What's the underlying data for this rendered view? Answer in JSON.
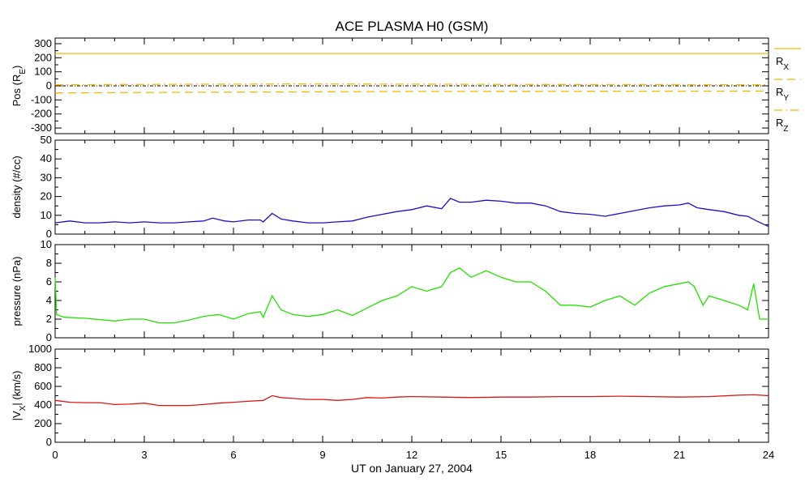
{
  "figure": {
    "title": "ACE PLASMA H0 (GSM)",
    "xlabel": "UT on January 27, 2004"
  },
  "chart_data": [
    {
      "type": "line",
      "panel": "position",
      "ylabel_main": "Pos (R",
      "ylabel_sub": "E",
      "ylabel_end": ")",
      "ylim": [
        -340,
        340
      ],
      "yticks": [
        "300",
        "200",
        "100",
        "0",
        "-100",
        "-200",
        "-300"
      ],
      "ytick_values": [
        300,
        200,
        100,
        0,
        -100,
        -200,
        -300
      ],
      "xlim": [
        0,
        24
      ],
      "zero_line": true,
      "series": [
        {
          "name": "R",
          "sub": "X",
          "color": "#f5b800",
          "style": "solid",
          "x": [
            0,
            24
          ],
          "y": [
            230,
            230
          ]
        },
        {
          "name": "R",
          "sub": "Y",
          "color": "#f5b800",
          "style": "dashed",
          "x": [
            0,
            4,
            8,
            12,
            16,
            20,
            24
          ],
          "y": [
            -50,
            -46,
            -43,
            -40,
            -39,
            -38,
            -37
          ]
        },
        {
          "name": "R",
          "sub": "Z",
          "color": "#f5b800",
          "style": "dashdot",
          "x": [
            0,
            4,
            8,
            12,
            16,
            20,
            24
          ],
          "y": [
            8,
            11,
            13,
            12,
            10,
            9,
            8
          ]
        }
      ]
    },
    {
      "type": "line",
      "panel": "density",
      "ylabel": "density (#/cc)",
      "ylim": [
        0,
        50
      ],
      "yticks": [
        "50",
        "40",
        "30",
        "20",
        "10",
        "0"
      ],
      "ytick_values": [
        50,
        40,
        30,
        20,
        10,
        0
      ],
      "xlim": [
        0,
        24
      ],
      "series": [
        {
          "name": "density",
          "color": "#1a10c8",
          "x": [
            0,
            0.5,
            1,
            1.5,
            2,
            2.5,
            3,
            3.5,
            4,
            4.5,
            5,
            5.3,
            5.7,
            6,
            6.5,
            6.9,
            7.0,
            7.3,
            7.6,
            8,
            8.5,
            9,
            9.5,
            10,
            10.5,
            11,
            11.5,
            12,
            12.5,
            13,
            13.3,
            13.6,
            14,
            14.5,
            15,
            15.5,
            16,
            16.5,
            17,
            17.5,
            18,
            18.5,
            19,
            19.5,
            20,
            20.5,
            21,
            21.3,
            21.6,
            22,
            22.5,
            23,
            23.3,
            23.6,
            24
          ],
          "y": [
            6,
            7,
            6,
            6,
            6.5,
            6,
            6.5,
            6,
            6,
            6.5,
            7,
            8.5,
            7,
            6.5,
            7.5,
            7.5,
            6.5,
            11,
            8,
            7,
            6,
            6,
            6.5,
            7,
            9,
            10.5,
            12,
            13,
            15,
            13.5,
            19,
            17,
            17,
            18,
            17.5,
            16.5,
            16.5,
            15,
            12,
            11,
            10.5,
            9.5,
            11,
            12.5,
            14,
            15,
            15.5,
            16.5,
            14,
            13,
            12,
            10,
            9.5,
            7,
            4
          ]
        }
      ]
    },
    {
      "type": "line",
      "panel": "pressure",
      "ylabel": "pressure (nPa)",
      "ylim": [
        0,
        10
      ],
      "yticks": [
        "10",
        "8",
        "6",
        "4",
        "2",
        "0"
      ],
      "ytick_values": [
        10,
        8,
        6,
        4,
        2,
        0
      ],
      "xlim": [
        0,
        24
      ],
      "series": [
        {
          "name": "pressure",
          "color": "#22e000",
          "x": [
            0,
            0.05,
            0.3,
            1,
            2,
            2.5,
            3,
            3.5,
            4,
            4.5,
            5,
            5.5,
            6,
            6.5,
            6.9,
            7.0,
            7.3,
            7.6,
            8,
            8.5,
            9,
            9.5,
            10,
            10.5,
            11,
            11.5,
            12,
            12.5,
            13,
            13.3,
            13.6,
            14,
            14.5,
            15,
            15.5,
            16,
            16.5,
            17,
            17.5,
            18,
            18.5,
            19,
            19.5,
            20,
            20.5,
            21,
            21.3,
            21.5,
            21.8,
            22,
            22.5,
            23,
            23.3,
            23.5,
            23.7,
            24
          ],
          "y": [
            6.5,
            2.5,
            2.2,
            2.1,
            1.8,
            2.0,
            2.0,
            1.6,
            1.6,
            1.9,
            2.3,
            2.5,
            2.0,
            2.6,
            2.8,
            2.2,
            4.5,
            3.0,
            2.5,
            2.3,
            2.5,
            3.0,
            2.4,
            3.2,
            4.0,
            4.5,
            5.5,
            5.0,
            5.5,
            7.0,
            7.5,
            6.5,
            7.2,
            6.5,
            6.0,
            6.0,
            5.0,
            3.5,
            3.5,
            3.3,
            4.0,
            4.5,
            3.5,
            4.8,
            5.5,
            5.8,
            6.0,
            5.5,
            3.5,
            4.5,
            4.0,
            3.5,
            3.0,
            5.8,
            2.0,
            2.0
          ]
        }
      ]
    },
    {
      "type": "line",
      "panel": "velocity",
      "ylabel_pre": "|V",
      "ylabel_sub": "X",
      "ylabel_end": "| (km/s)",
      "ylim": [
        0,
        1000
      ],
      "yticks": [
        "1000",
        "800",
        "600",
        "400",
        "200",
        "0"
      ],
      "ytick_values": [
        1000,
        800,
        600,
        400,
        200,
        0
      ],
      "xlim": [
        0,
        24
      ],
      "xticks": [
        "0",
        "3",
        "6",
        "9",
        "12",
        "15",
        "18",
        "21",
        "24"
      ],
      "xtick_values": [
        0,
        3,
        6,
        9,
        12,
        15,
        18,
        21,
        24
      ],
      "series": [
        {
          "name": "|Vx|",
          "color": "#dc1414",
          "x": [
            0,
            0.5,
            1,
            1.5,
            2,
            2.5,
            3,
            3.5,
            4,
            4.5,
            5,
            5.5,
            6,
            6.5,
            7,
            7.3,
            7.6,
            8,
            8.5,
            9,
            9.5,
            10,
            10.5,
            11,
            11.5,
            12,
            13,
            14,
            15,
            16,
            17,
            18,
            19,
            20,
            21,
            22,
            23,
            23.5,
            24
          ],
          "y": [
            450,
            430,
            425,
            425,
            405,
            410,
            420,
            395,
            395,
            395,
            405,
            420,
            430,
            440,
            450,
            500,
            480,
            470,
            460,
            460,
            450,
            460,
            480,
            475,
            485,
            490,
            485,
            480,
            485,
            485,
            490,
            490,
            495,
            490,
            485,
            490,
            505,
            510,
            500
          ]
        }
      ]
    }
  ]
}
